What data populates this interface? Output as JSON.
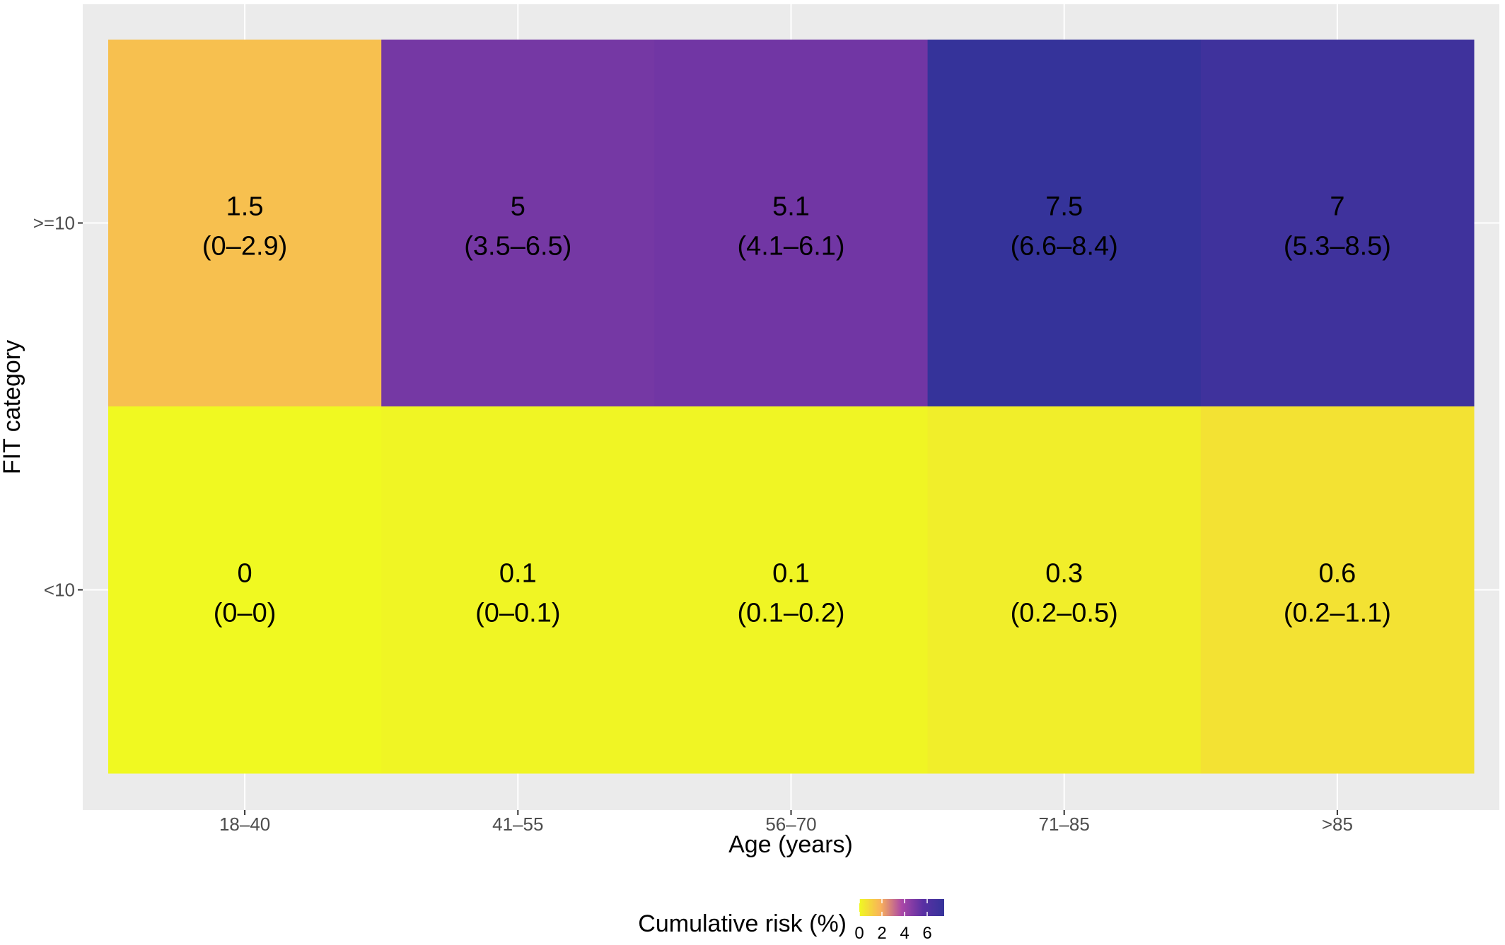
{
  "chart_data": {
    "type": "heatmap",
    "title": "",
    "xlabel": "Age (years)",
    "ylabel": "FIT category",
    "x_categories": [
      "18–40",
      "41–55",
      "56–70",
      "71–85",
      ">85"
    ],
    "y_categories": [
      ">=10",
      "<10"
    ],
    "cells": [
      {
        "x": "18–40",
        "y": ">=10",
        "value": 1.5,
        "label": "1.5",
        "ci": "(0–2.9)"
      },
      {
        "x": "41–55",
        "y": ">=10",
        "value": 5,
        "label": "5",
        "ci": "(3.5–6.5)"
      },
      {
        "x": "56–70",
        "y": ">=10",
        "value": 5.1,
        "label": "5.1",
        "ci": "(4.1–6.1)"
      },
      {
        "x": "71–85",
        "y": ">=10",
        "value": 7.5,
        "label": "7.5",
        "ci": "(6.6–8.4)"
      },
      {
        "x": ">85",
        "y": ">=10",
        "value": 7,
        "label": "7",
        "ci": "(5.3–8.5)"
      },
      {
        "x": "18–40",
        "y": "<10",
        "value": 0,
        "label": "0",
        "ci": "(0–0)"
      },
      {
        "x": "41–55",
        "y": "<10",
        "value": 0.1,
        "label": "0.1",
        "ci": "(0–0.1)"
      },
      {
        "x": "56–70",
        "y": "<10",
        "value": 0.1,
        "label": "0.1",
        "ci": "(0.1–0.2)"
      },
      {
        "x": "71–85",
        "y": "<10",
        "value": 0.3,
        "label": "0.3",
        "ci": "(0.2–0.5)"
      },
      {
        "x": ">85",
        "y": "<10",
        "value": 0.6,
        "label": "0.6",
        "ci": "(0.2–1.1)"
      }
    ],
    "legend": {
      "title": "Cumulative risk (%)",
      "ticks": [
        "0",
        "2",
        "4",
        "6"
      ],
      "range": [
        0,
        7.5
      ],
      "position": "bottom"
    },
    "colors": {
      "panel_background": "#ebebeb",
      "grid": "#ffffff",
      "scale": [
        "#f0f921",
        "#f9b25a",
        "#ab47a7",
        "#5a30a3",
        "#35339a"
      ]
    },
    "grid": true
  }
}
